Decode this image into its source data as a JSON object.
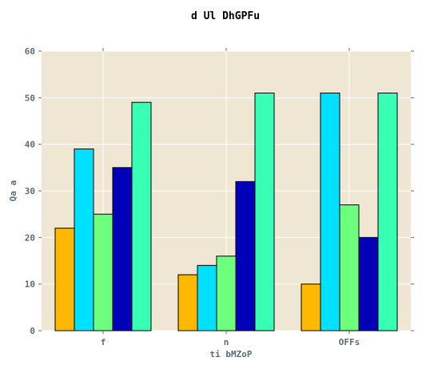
{
  "chart_data": {
    "type": "bar",
    "title": "d Ul DhGPFu",
    "xlabel": "ti bMZoP",
    "ylabel": "Qa a",
    "categories": [
      "f",
      "n",
      "OFFs"
    ],
    "ylim": [
      0,
      60
    ],
    "yticks": [
      "0",
      "10",
      "20",
      "30",
      "40",
      "50",
      "60"
    ],
    "grid": true,
    "legend": "none",
    "series": [
      {
        "values": [
          22,
          12,
          10
        ],
        "color": "#ffb800"
      },
      {
        "values": [
          39,
          14,
          51
        ],
        "color": "#00e1ff"
      },
      {
        "values": [
          25,
          16,
          27
        ],
        "color": "#6fff7e"
      },
      {
        "values": [
          35,
          32,
          20
        ],
        "color": "#0000b8"
      },
      {
        "values": [
          49,
          51,
          51
        ],
        "color": "#37ffb4"
      }
    ],
    "colors": {
      "plot_background": "#efe7d4",
      "grid": "#ffffff",
      "text": "#5d6d7e",
      "bar_edge": "#000000"
    }
  }
}
